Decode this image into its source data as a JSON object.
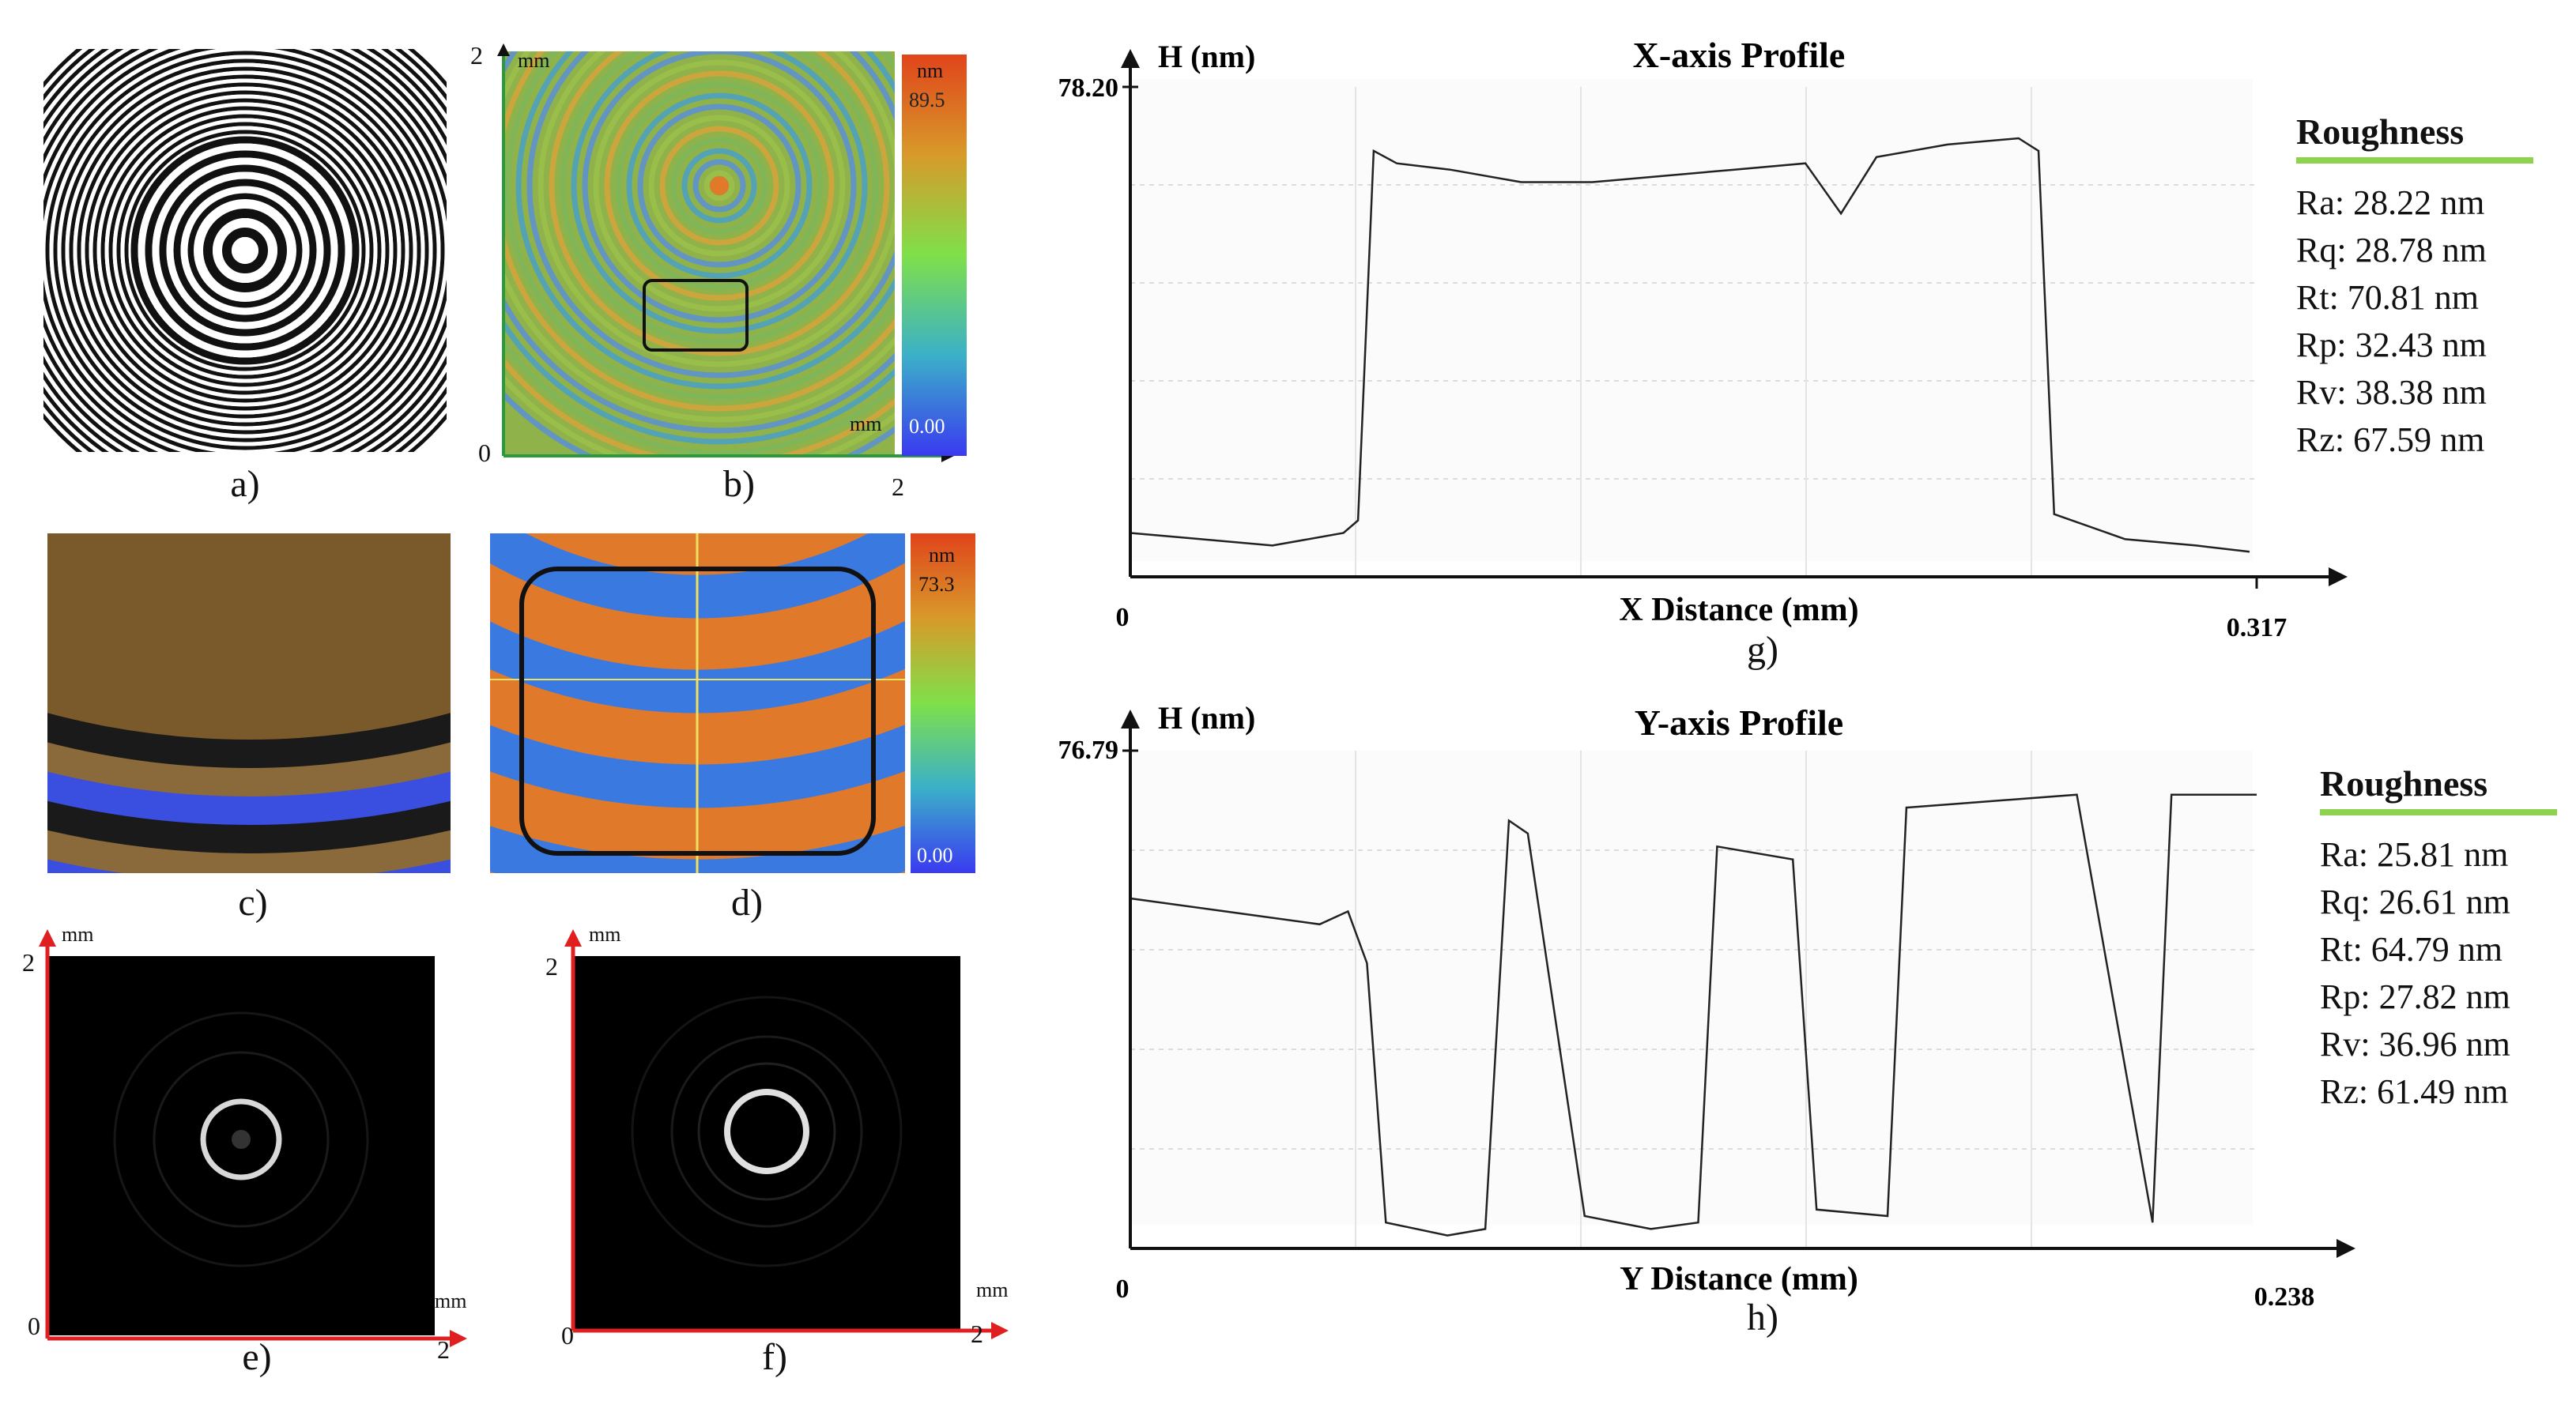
{
  "panels": {
    "a": {
      "label": "a)"
    },
    "b": {
      "label": "b)",
      "axis_top": "2",
      "axis_origin": "0",
      "axis_right": "2",
      "unit_y": "mm",
      "unit_x": "mm",
      "colorbar": {
        "unit": "nm",
        "max": "89.5",
        "min": "0.00"
      }
    },
    "c": {
      "label": "c)"
    },
    "d": {
      "label": "d)",
      "colorbar": {
        "unit": "nm",
        "max": "73.3",
        "min": "0.00"
      }
    },
    "e": {
      "label": "e)",
      "axis_top": "2",
      "axis_origin": "0",
      "axis_right": "2",
      "unit_y": "mm",
      "unit_x": "mm"
    },
    "f": {
      "label": "f)",
      "axis_top": "2",
      "axis_origin": "0",
      "axis_right": "2",
      "unit_y": "mm",
      "unit_x": "mm"
    },
    "g": {
      "label": "g)"
    },
    "h": {
      "label": "h)"
    }
  },
  "colors": {
    "accent_green": "#8ed34f",
    "axis_red": "#e02020",
    "line": "#222222",
    "grid": "#cfcfcf"
  },
  "chart_data": [
    {
      "type": "line",
      "title": "X-axis Profile",
      "ylabel": "H (nm)",
      "xlabel": "X Distance (mm)",
      "xlim": [
        0,
        0.317
      ],
      "ylim": [
        0,
        78.2
      ],
      "x_ticks": [
        "0",
        "0.317"
      ],
      "y_ticks": [
        "78.20"
      ],
      "grid": true,
      "series": [
        {
          "x": [
            0,
            0.02,
            0.04,
            0.06,
            0.0641,
            0.0685,
            0.075,
            0.09,
            0.11,
            0.13,
            0.15,
            0.17,
            0.19,
            0.2,
            0.21,
            0.23,
            0.25,
            0.2556,
            0.26,
            0.28,
            0.3,
            0.315
          ],
          "y": [
            7,
            6,
            5,
            7,
            9,
            68,
            66,
            65,
            63,
            63,
            64,
            65,
            66,
            58,
            67,
            69,
            70,
            68,
            10,
            6,
            5,
            4
          ]
        }
      ],
      "roughness": {
        "title": "Roughness",
        "items": [
          "Ra: 28.22 nm",
          "Rq: 28.78 nm",
          "Rt: 70.81 nm",
          "Rp: 32.43 nm",
          "Rv: 38.38 nm",
          "Rz: 67.59 nm"
        ]
      }
    },
    {
      "type": "line",
      "title": "Y-axis Profile",
      "ylabel": "H (nm)",
      "xlabel": "Y Distance (mm)",
      "xlim": [
        0,
        0.238
      ],
      "ylim": [
        0,
        76.79
      ],
      "x_ticks": [
        "0",
        "0.238"
      ],
      "y_ticks": [
        "76.79"
      ],
      "grid": true,
      "series": [
        {
          "x": [
            0,
            0.02,
            0.04,
            0.046,
            0.05,
            0.054,
            0.067,
            0.075,
            0.08,
            0.084,
            0.096,
            0.11,
            0.12,
            0.124,
            0.14,
            0.145,
            0.16,
            0.164,
            0.2,
            0.2,
            0.2,
            0.2,
            0.2,
            0.216,
            0.22,
            0.238
          ],
          "y": [
            54,
            52,
            50,
            52,
            44,
            4,
            2,
            3,
            66,
            64,
            5,
            3,
            4,
            62,
            60,
            6,
            5,
            68,
            70,
            70,
            70,
            70,
            70,
            4,
            70,
            70
          ]
        }
      ],
      "roughness": {
        "title": "Roughness",
        "items": [
          "Ra: 25.81 nm",
          "Rq: 26.61 nm",
          "Rt: 64.79 nm",
          "Rp: 27.82 nm",
          "Rv: 36.96 nm",
          "Rz: 61.49 nm"
        ]
      }
    }
  ]
}
